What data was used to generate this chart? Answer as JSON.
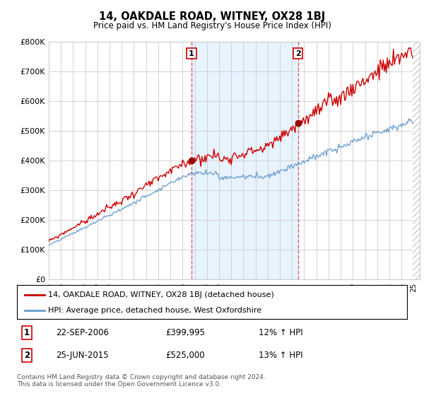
{
  "title": "14, OAKDALE ROAD, WITNEY, OX28 1BJ",
  "subtitle": "Price paid vs. HM Land Registry's House Price Index (HPI)",
  "ylim": [
    0,
    800000
  ],
  "yticks": [
    0,
    100000,
    200000,
    300000,
    400000,
    500000,
    600000,
    700000,
    800000
  ],
  "ytick_labels": [
    "£0",
    "£100K",
    "£200K",
    "£300K",
    "£400K",
    "£500K",
    "£600K",
    "£700K",
    "£800K"
  ],
  "sale1_date": 2006.73,
  "sale1_price": 399995,
  "sale1_label": "1",
  "sale2_date": 2015.48,
  "sale2_price": 525000,
  "sale2_label": "2",
  "hpi_color": "#6699cc",
  "price_color": "#cc0000",
  "marker_color": "#990000",
  "background_color": "#ffffff",
  "grid_color": "#cccccc",
  "vline_color": "#dd4444",
  "shade_color": "#ddeeff",
  "footnote": "Contains HM Land Registry data © Crown copyright and database right 2024.\nThis data is licensed under the Open Government Licence v3.0.",
  "legend_line1": "14, OAKDALE ROAD, WITNEY, OX28 1BJ (detached house)",
  "legend_line2": "HPI: Average price, detached house, West Oxfordshire",
  "table_row1_num": "1",
  "table_row1_date": "22-SEP-2006",
  "table_row1_price": "£399,995",
  "table_row1_hpi": "12% ↑ HPI",
  "table_row2_num": "2",
  "table_row2_date": "25-JUN-2015",
  "table_row2_price": "£525,000",
  "table_row2_hpi": "13% ↑ HPI"
}
